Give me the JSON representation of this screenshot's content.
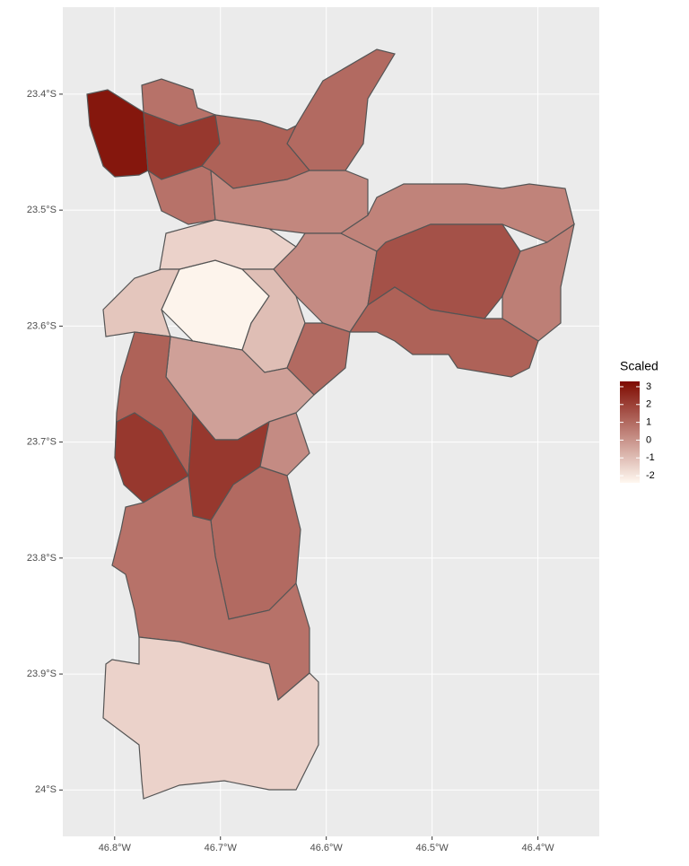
{
  "chart_data": {
    "type": "choropleth",
    "legend_title": "Scaled",
    "xlim": [
      -46.849,
      -46.342
    ],
    "ylim": [
      -24.04,
      -23.325
    ],
    "xticks": [
      {
        "value": -46.8,
        "label": "46.8°W"
      },
      {
        "value": -46.7,
        "label": "46.7°W"
      },
      {
        "value": -46.6,
        "label": "46.6°W"
      },
      {
        "value": -46.5,
        "label": "46.5°W"
      },
      {
        "value": -46.4,
        "label": "46.4°W"
      }
    ],
    "yticks": [
      {
        "value": -23.4,
        "label": "23.4°S"
      },
      {
        "value": -23.5,
        "label": "23.5°S"
      },
      {
        "value": -23.6,
        "label": "23.6°S"
      },
      {
        "value": -23.7,
        "label": "23.7°S"
      },
      {
        "value": -23.8,
        "label": "23.8°S"
      },
      {
        "value": -23.9,
        "label": "23.9°S"
      },
      {
        "value": -24,
        "label": "24°S"
      }
    ],
    "grid": true,
    "values": [
      3.0,
      2.2,
      0.8,
      1.0,
      1.2,
      0.8,
      0.3,
      -2.3,
      -1.5,
      -1.2,
      0.2,
      -1.0,
      0.4,
      1.6,
      0.5,
      1.2,
      1.0,
      -0.3,
      1.2,
      2.2,
      2.2,
      0.2,
      1.0,
      0.8,
      -1.5
    ],
    "colorbar": {
      "lim": [
        -2.4,
        3.3
      ],
      "ticks": [
        3,
        2,
        1,
        0,
        -1,
        -2
      ],
      "low": "#fff8f0",
      "high": "#7e0a00"
    },
    "legend_position": "right"
  }
}
